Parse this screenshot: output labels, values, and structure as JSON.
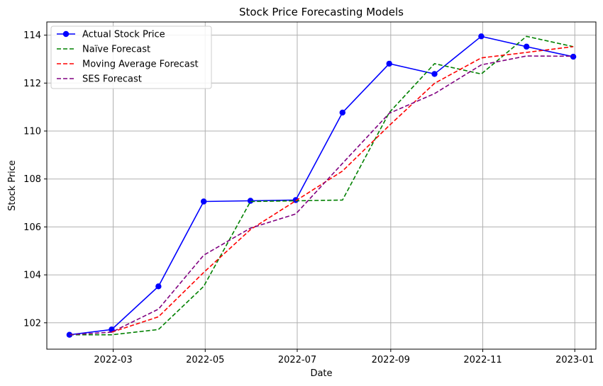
{
  "chart_data": {
    "type": "line",
    "title": "Stock Price Forecasting Models",
    "xlabel": "Date",
    "ylabel": "Stock Price",
    "x": [
      "2022-01-31",
      "2022-02-28",
      "2022-03-31",
      "2022-04-30",
      "2022-05-31",
      "2022-06-30",
      "2022-07-31",
      "2022-08-31",
      "2022-09-30",
      "2022-10-31",
      "2022-11-30",
      "2022-12-31"
    ],
    "xlim": [
      "2022-01-16",
      "2023-01-15"
    ],
    "ylim": [
      100.9,
      114.55
    ],
    "x_ticks": [
      "2022-03-01",
      "2022-05-01",
      "2022-07-01",
      "2022-09-01",
      "2022-11-01",
      "2023-01-01"
    ],
    "x_tick_labels": [
      "2022-03",
      "2022-05",
      "2022-07",
      "2022-09",
      "2022-11",
      "2023-01"
    ],
    "y_ticks": [
      102,
      104,
      106,
      108,
      110,
      112,
      114
    ],
    "y_tick_labels": [
      "102",
      "104",
      "106",
      "108",
      "110",
      "112",
      "114"
    ],
    "grid": true,
    "legend_position": "top-left",
    "series": [
      {
        "name": "Actual Stock Price",
        "color": "#0000ff",
        "dash": "solid",
        "marker": "circle",
        "values": [
          101.5,
          101.72,
          103.52,
          107.06,
          107.09,
          107.12,
          110.77,
          112.81,
          112.38,
          113.95,
          113.52,
          113.1
        ]
      },
      {
        "name": "Naïve Forecast",
        "color": "#008000",
        "dash": "dashed",
        "values": [
          101.5,
          101.5,
          101.72,
          103.52,
          107.06,
          107.09,
          107.12,
          110.77,
          112.81,
          112.38,
          113.95,
          113.52
        ]
      },
      {
        "name": "Moving Average Forecast",
        "color": "#ff0000",
        "dash": "dashed",
        "values": [
          null,
          101.61,
          102.25,
          104.1,
          105.89,
          107.09,
          108.33,
          110.23,
          111.99,
          113.05,
          113.28,
          113.52
        ]
      },
      {
        "name": "SES Forecast",
        "color": "#800080",
        "dash": "dashed",
        "values": [
          101.5,
          101.61,
          102.57,
          104.82,
          105.95,
          106.54,
          108.65,
          110.74,
          111.56,
          112.76,
          113.13,
          113.12
        ]
      }
    ]
  }
}
